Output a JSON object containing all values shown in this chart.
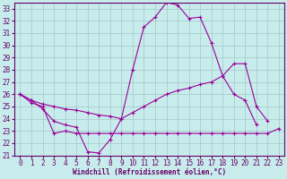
{
  "xlabel": "Windchill (Refroidissement éolien,°C)",
  "bg_color": "#c8ecec",
  "grid_color": "#a0c8c8",
  "line_color": "#990099",
  "xlim": [
    -0.5,
    23.5
  ],
  "ylim": [
    21,
    33.5
  ],
  "xticks": [
    0,
    1,
    2,
    3,
    4,
    5,
    6,
    7,
    8,
    9,
    10,
    11,
    12,
    13,
    14,
    15,
    16,
    17,
    18,
    19,
    20,
    21,
    22,
    23
  ],
  "yticks": [
    21,
    22,
    23,
    24,
    25,
    26,
    27,
    28,
    29,
    30,
    31,
    32,
    33
  ],
  "line1_x": [
    0,
    1,
    2,
    3,
    4,
    5,
    6,
    7,
    8,
    9,
    10,
    11,
    12,
    13,
    14,
    15,
    16,
    17,
    18,
    19,
    20,
    21,
    22
  ],
  "line1_y": [
    26.0,
    25.5,
    24.8,
    23.8,
    23.5,
    23.3,
    21.3,
    21.2,
    22.3,
    24.0,
    28.0,
    31.5,
    32.3,
    33.5,
    33.3,
    32.2,
    32.3,
    30.2,
    27.5,
    26.0,
    25.5,
    23.5,
    null
  ],
  "line2_x": [
    0,
    1,
    2,
    3,
    4,
    5,
    6,
    7,
    8,
    9,
    10,
    11,
    12,
    13,
    14,
    15,
    16,
    17,
    18,
    19,
    20,
    21,
    22,
    23
  ],
  "line2_y": [
    26.0,
    25.5,
    25.2,
    25.0,
    24.8,
    24.7,
    24.5,
    24.3,
    24.2,
    24.0,
    24.5,
    25.0,
    25.5,
    26.0,
    26.3,
    26.5,
    26.8,
    27.0,
    27.5,
    28.5,
    28.5,
    25.0,
    23.8,
    null
  ],
  "line3_x": [
    0,
    1,
    2,
    3,
    4,
    5,
    6,
    7,
    8,
    9,
    10,
    11,
    12,
    13,
    14,
    15,
    16,
    17,
    18,
    19,
    20,
    21,
    22,
    23
  ],
  "line3_y": [
    26.0,
    25.3,
    25.0,
    22.8,
    23.0,
    22.8,
    22.8,
    22.8,
    22.8,
    22.8,
    22.8,
    22.8,
    22.8,
    22.8,
    22.8,
    22.8,
    22.8,
    22.8,
    22.8,
    22.8,
    22.8,
    22.8,
    22.8,
    23.2
  ]
}
